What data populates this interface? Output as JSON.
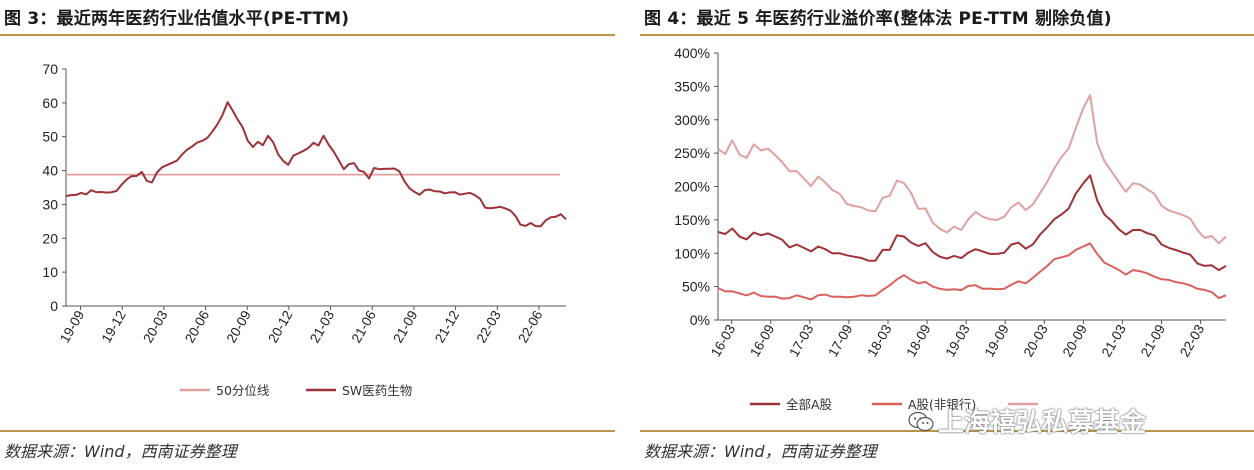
{
  "left": {
    "title": "图 3：最近两年医药行业估值水平(PE-TTM)",
    "source": "数据来源：Wind，西南证券整理"
  },
  "right": {
    "title": "图 4：最近 5 年医药行业溢价率(整体法 PE-TTM 剔除负值)",
    "source": "数据来源：Wind，西南证券整理"
  },
  "watermark": {
    "text": "上海禧弘私募基金",
    "icon": "wechat-icon"
  },
  "colors": {
    "rule": "#b8944c",
    "light": "#e2a0a0",
    "dark": "#9e3238",
    "mid": "#d9625d"
  },
  "chart_data": [
    {
      "type": "line",
      "title": "",
      "ylim": [
        0,
        70
      ],
      "yticks": [
        "0",
        "10",
        "20",
        "30",
        "40",
        "50",
        "60",
        "70"
      ],
      "xticks": [
        "19-09",
        "19-12",
        "20-03",
        "20-06",
        "20-09",
        "20-12",
        "21-03",
        "21-06",
        "21-09",
        "21-12",
        "22-03",
        "22-06"
      ],
      "grid": false,
      "legend_position": "bottom",
      "series": [
        {
          "name": "50分位线",
          "color": "#e2a0a0",
          "constant": 38.8
        },
        {
          "name": "SW医药生物",
          "color": "#9e3238",
          "values": [
            32.5,
            33.0,
            32.6,
            33.4,
            33.2,
            34.0,
            33.6,
            33.9,
            33.3,
            33.6,
            34.2,
            35.6,
            37.4,
            38.6,
            38.2,
            39.6,
            37.2,
            36.3,
            39.4,
            41.2,
            41.4,
            42.3,
            43.2,
            44.6,
            46.2,
            47.4,
            48.1,
            48.8,
            49.9,
            51.4,
            53.7,
            56.7,
            60.0,
            57.7,
            55.3,
            52.5,
            48.8,
            47.2,
            48.3,
            47.5,
            50.5,
            48.2,
            44.8,
            43.1,
            41.5,
            44.4,
            45.3,
            45.6,
            46.7,
            48.4,
            47.2,
            50.3,
            47.9,
            45.4,
            43.1,
            40.6,
            41.7,
            42.2,
            40.3,
            39.4,
            37.7,
            41.0,
            40.2,
            40.5,
            40.8,
            40.4,
            39.8,
            37.1,
            34.6,
            33.7,
            33.1,
            34.0,
            34.4,
            34.1,
            33.6,
            33.3,
            33.8,
            33.4,
            32.9,
            33.4,
            33.2,
            32.7,
            31.9,
            28.8,
            28.9,
            29.3,
            29.1,
            28.8,
            28.4,
            26.4,
            24.0,
            23.9,
            24.3,
            23.6,
            23.8,
            25.1,
            26.2,
            26.6,
            26.9,
            25.6
          ]
        }
      ]
    },
    {
      "type": "line",
      "title": "",
      "ylim": [
        0,
        400
      ],
      "yticks": [
        "0%",
        "50%",
        "100%",
        "150%",
        "200%",
        "250%",
        "300%",
        "350%",
        "400%"
      ],
      "xticks": [
        "16-03",
        "16-09",
        "17-03",
        "17-09",
        "18-03",
        "18-09",
        "19-03",
        "19-09",
        "20-03",
        "20-09",
        "21-03",
        "21-09",
        "22-03"
      ],
      "grid": false,
      "legend_position": "bottom",
      "series": [
        {
          "name": "全部A股",
          "color": "#9e3238",
          "values": [
            132,
            130,
            136,
            125,
            122,
            130,
            127,
            131,
            124,
            120,
            110,
            112,
            108,
            104,
            109,
            106,
            101,
            99,
            97,
            96,
            92,
            89,
            90,
            104,
            105,
            128,
            124,
            116,
            112,
            114,
            102,
            96,
            91,
            96,
            94,
            100,
            106,
            104,
            98,
            99,
            102,
            112,
            116,
            108,
            112,
            128,
            140,
            150,
            158,
            168,
            188,
            204,
            218,
            178,
            158,
            150,
            135,
            128,
            136,
            134,
            130,
            128,
            112,
            108,
            106,
            100,
            98,
            86,
            80,
            82,
            76,
            80
          ]
        },
        {
          "name": "A股(非银行)",
          "color": "#d9625d",
          "values": [
            48,
            44,
            42,
            40,
            38,
            40,
            36,
            36,
            34,
            32,
            34,
            36,
            34,
            32,
            36,
            38,
            36,
            34,
            34,
            36,
            36,
            36,
            38,
            44,
            52,
            62,
            66,
            60,
            56,
            56,
            50,
            48,
            44,
            46,
            46,
            50,
            52,
            48,
            46,
            46,
            48,
            52,
            58,
            56,
            62,
            72,
            82,
            90,
            94,
            98,
            104,
            110,
            116,
            98,
            86,
            82,
            74,
            68,
            76,
            72,
            70,
            66,
            60,
            60,
            58,
            54,
            52,
            48,
            44,
            42,
            34,
            36
          ]
        },
        {
          "name": "",
          "color": "#e2a0a0",
          "values": [
            256,
            250,
            268,
            248,
            244,
            262,
            254,
            258,
            246,
            236,
            224,
            222,
            212,
            202,
            214,
            206,
            196,
            188,
            174,
            172,
            168,
            164,
            164,
            182,
            186,
            210,
            204,
            190,
            168,
            166,
            146,
            138,
            130,
            140,
            136,
            150,
            162,
            156,
            150,
            150,
            156,
            168,
            176,
            166,
            172,
            190,
            208,
            226,
            244,
            258,
            286,
            316,
            338,
            264,
            238,
            224,
            206,
            192,
            206,
            202,
            196,
            190,
            170,
            164,
            162,
            156,
            152,
            136,
            122,
            126,
            116,
            124
          ]
        }
      ]
    }
  ]
}
